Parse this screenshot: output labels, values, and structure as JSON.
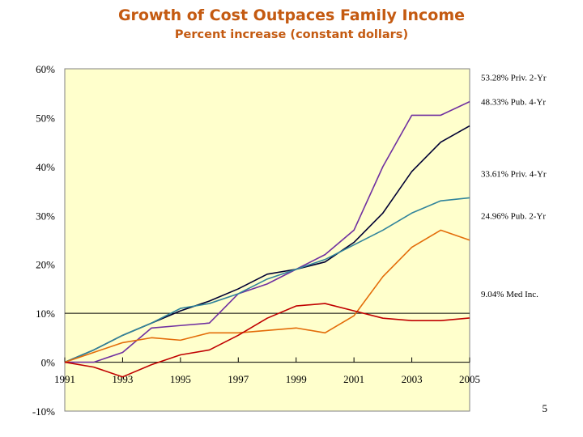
{
  "chart_data": {
    "type": "line",
    "title": "Growth of Cost Outpaces Family Income",
    "subtitle": "Percent increase (constant dollars)",
    "xlabel": "",
    "ylabel": "",
    "x": [
      1991,
      1992,
      1993,
      1994,
      1995,
      1996,
      1997,
      1998,
      1999,
      2000,
      2001,
      2002,
      2003,
      2004,
      2005
    ],
    "x_tick_labels": [
      "1991",
      "1993",
      "1995",
      "1997",
      "1999",
      "2001",
      "2003",
      "2005"
    ],
    "y_tick_labels": [
      "60%",
      "50%",
      "40%",
      "30%",
      "20%",
      "10%",
      "0%",
      "-10%"
    ],
    "y_ticks": [
      60,
      50,
      40,
      30,
      20,
      10,
      0,
      -10
    ],
    "ylim": [
      -10,
      60
    ],
    "xlim": [
      1991,
      2005
    ],
    "reference_line": 10,
    "plot_background": "#ffffcc",
    "series": [
      {
        "label": "53.28% Priv. 2-Yr",
        "color": "#7030a0",
        "values": [
          0,
          0,
          2,
          7,
          7.5,
          8,
          14,
          16,
          19,
          22,
          27,
          40,
          50.5,
          50.5,
          53.28
        ]
      },
      {
        "label": "48.33% Pub. 4-Yr",
        "color": "#000033",
        "values": [
          0,
          2.5,
          5.5,
          8,
          10.5,
          12.5,
          15,
          18,
          19,
          20.5,
          24.5,
          30.5,
          39,
          45,
          48.33
        ]
      },
      {
        "label": "33.61% Priv. 4-Yr",
        "color": "#31849b",
        "values": [
          0,
          2.5,
          5.5,
          8,
          11,
          12,
          14,
          17,
          19,
          21,
          24,
          27,
          30.5,
          33,
          33.61
        ]
      },
      {
        "label": "24.96% Pub. 2-Yr",
        "color": "#e36c09",
        "values": [
          0,
          2,
          4,
          5,
          4.5,
          6,
          6,
          6.5,
          7,
          6,
          9.5,
          17.5,
          23.5,
          27,
          24.96
        ]
      },
      {
        "label": "9.04% Med Inc.",
        "color": "#c00000",
        "values": [
          0,
          -1,
          -3,
          -0.5,
          1.5,
          2.5,
          5.5,
          9,
          11.5,
          12,
          10.5,
          9,
          8.5,
          8.5,
          9.04
        ]
      }
    ]
  },
  "page_number": "5"
}
